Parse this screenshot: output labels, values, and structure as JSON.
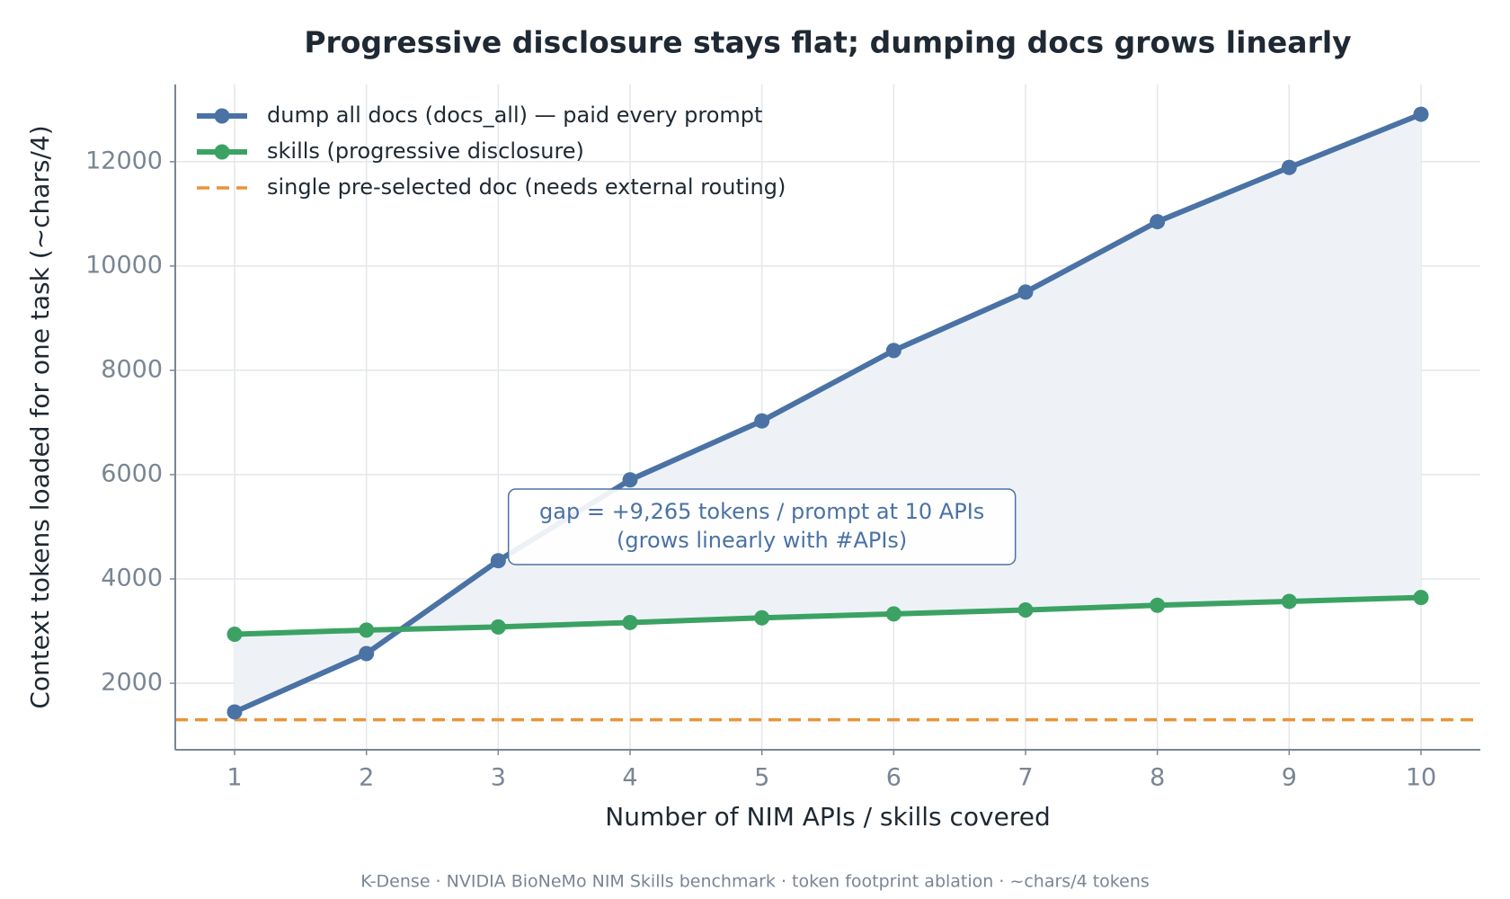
{
  "chart_data": {
    "type": "line",
    "title": "Progressive disclosure stays flat; dumping docs grows linearly",
    "xlabel": "Number of NIM APIs / skills covered",
    "ylabel": "Context tokens loaded for one task  (~chars/4)",
    "x": [
      1,
      2,
      3,
      4,
      5,
      6,
      7,
      8,
      9,
      10
    ],
    "series": [
      {
        "name": "dump all docs (docs_all) — paid every prompt",
        "color": "#4a72a5",
        "values": [
          1450,
          2570,
          4350,
          5900,
          7030,
          8380,
          9500,
          10850,
          11890,
          12910
        ]
      },
      {
        "name": "skills (progressive disclosure)",
        "color": "#3ba264",
        "values": [
          2940,
          3020,
          3080,
          3165,
          3255,
          3330,
          3405,
          3495,
          3570,
          3645
        ]
      }
    ],
    "hlines": [
      {
        "name": "single pre-selected doc (needs external routing)",
        "color": "#e8943a",
        "value": 1300,
        "dashed": true
      }
    ],
    "fill_between": true,
    "fill_color": "#eef2f6",
    "xlim": [
      0.55,
      10.45
    ],
    "ylim": [
      725,
      13480
    ],
    "xticks": [
      1,
      2,
      3,
      4,
      5,
      6,
      7,
      8,
      9,
      10
    ],
    "yticks": [
      2000,
      4000,
      6000,
      8000,
      10000,
      12000
    ],
    "grid": true,
    "legend": "upper left",
    "annotation": [
      "gap = +9,265 tokens / prompt at 10 APIs",
      "(grows linearly with #APIs)"
    ],
    "footer": "K-Dense  ·  NVIDIA BioNeMo NIM Skills benchmark  ·  token footprint ablation  ·  ~chars/4 tokens"
  }
}
